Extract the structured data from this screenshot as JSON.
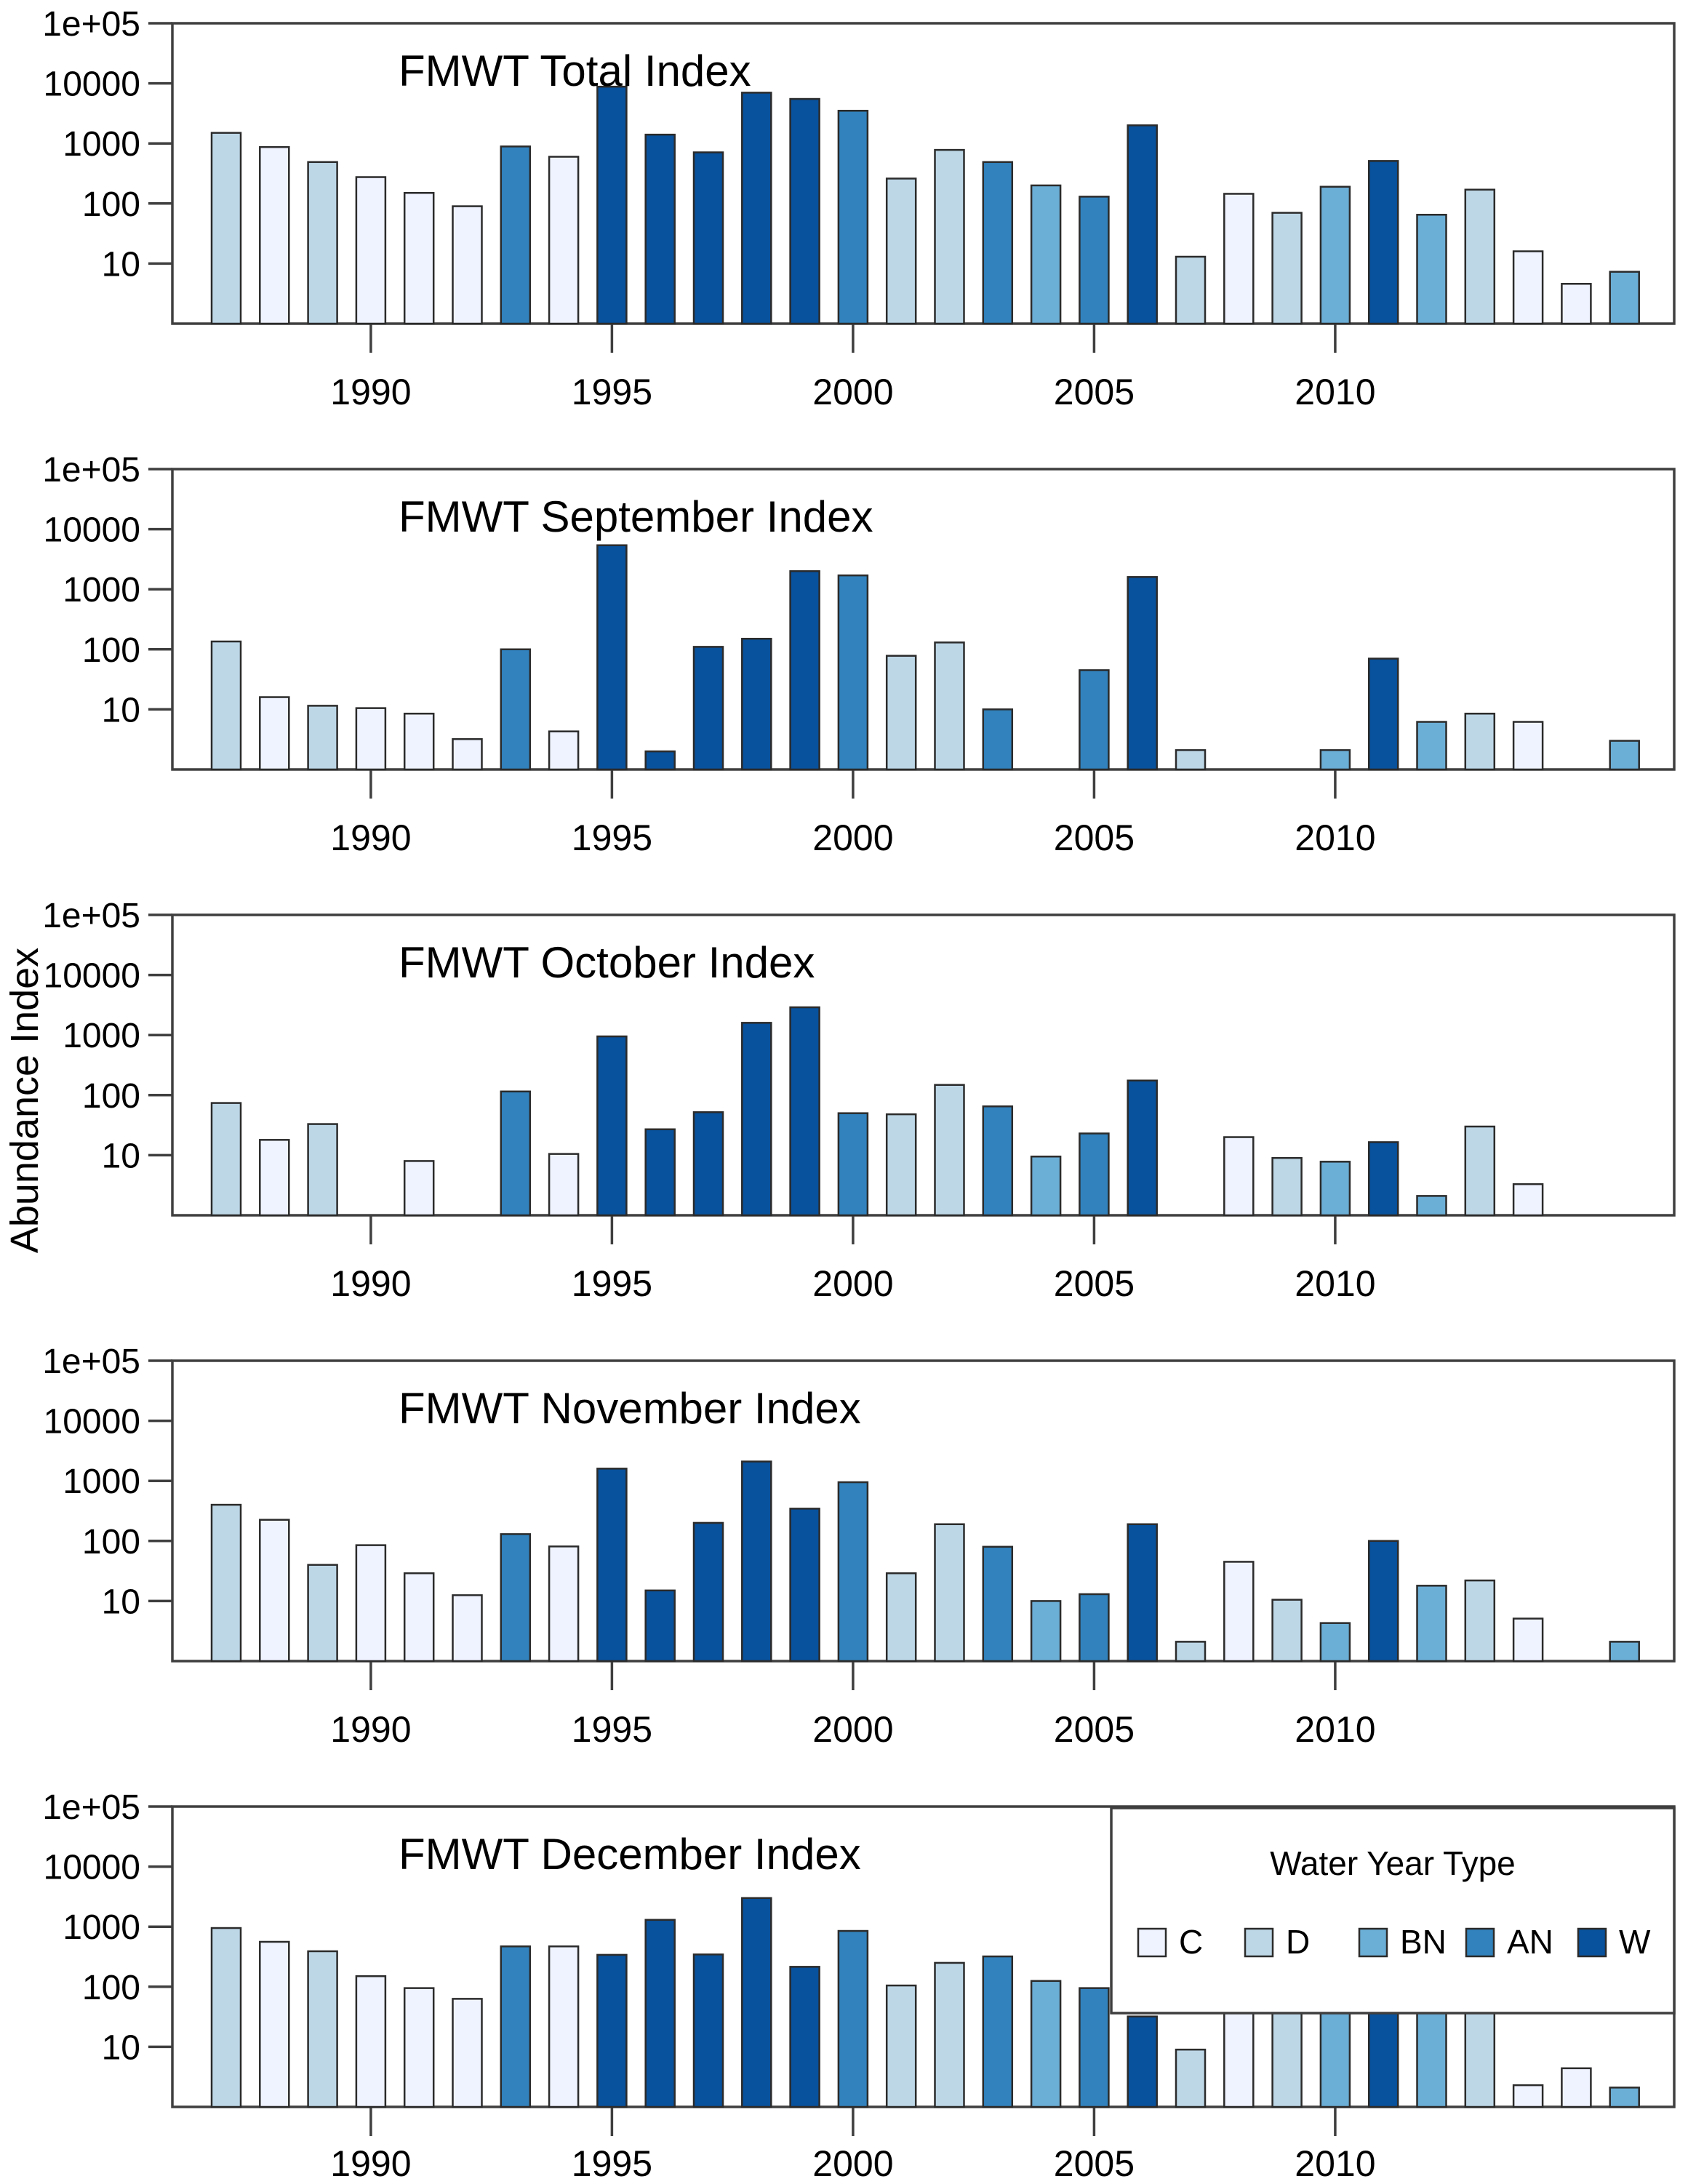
{
  "figure": {
    "ylabel": "Abundance Index",
    "y_tick_labels": [
      "10",
      "100",
      "1000",
      "10000",
      "1e+05"
    ],
    "x_tick_years": [
      1990,
      1995,
      2000,
      2005,
      2010
    ],
    "years": [
      1987,
      1988,
      1989,
      1990,
      1991,
      1992,
      1993,
      1994,
      1995,
      1996,
      1997,
      1998,
      1999,
      2000,
      2001,
      2002,
      2003,
      2004,
      2005,
      2006,
      2007,
      2008,
      2009,
      2010,
      2011,
      2012,
      2013,
      2014,
      2015,
      2016
    ],
    "water_year_types": [
      "D",
      "C",
      "D",
      "C",
      "C",
      "C",
      "AN",
      "C",
      "W",
      "W",
      "W",
      "W",
      "W",
      "AN",
      "D",
      "D",
      "AN",
      "BN",
      "AN",
      "W",
      "D",
      "C",
      "D",
      "BN",
      "W",
      "BN",
      "D",
      "C",
      "C",
      "BN"
    ]
  },
  "palette": {
    "C": "#EFF3FF",
    "D": "#BDD7E7",
    "BN": "#6BAED6",
    "AN": "#3182BD",
    "W": "#08519C"
  },
  "axis_color": "#3f3f3f",
  "bar_stroke_color": "#2b2b2b",
  "legend": {
    "title": "Water Year Type",
    "entries": [
      {
        "label": "C",
        "color": "#EFF3FF"
      },
      {
        "label": "D",
        "color": "#BDD7E7"
      },
      {
        "label": "BN",
        "color": "#6BAED6"
      },
      {
        "label": "AN",
        "color": "#3182BD"
      },
      {
        "label": "W",
        "color": "#08519C"
      }
    ]
  },
  "chart_data": [
    {
      "type": "bar",
      "title": "FMWT Total Index",
      "yscale": "log",
      "ylim": [
        1,
        100000
      ],
      "grid": false,
      "color_by": "water_year_type",
      "values": [
        1500,
        870,
        490,
        275,
        150,
        90,
        890,
        600,
        8800,
        1400,
        710,
        7000,
        5500,
        3500,
        260,
        780,
        490,
        200,
        130,
        2000,
        13,
        145,
        70,
        190,
        510,
        65,
        170,
        16,
        4.6,
        7.3
      ]
    },
    {
      "type": "bar",
      "title": "FMWT September Index",
      "yscale": "log",
      "ylim": [
        1,
        100000
      ],
      "grid": false,
      "color_by": "water_year_type",
      "values": [
        135,
        16,
        11.5,
        10.5,
        8.5,
        3.2,
        100,
        4.3,
        5400,
        2,
        110,
        150,
        2000,
        1700,
        78,
        130,
        10,
        null,
        45,
        1600,
        2.1,
        null,
        null,
        2.1,
        70,
        6.2,
        8.5,
        6.2,
        null,
        3
      ]
    },
    {
      "type": "bar",
      "title": "FMWT October Index",
      "yscale": "log",
      "ylim": [
        1,
        100000
      ],
      "grid": false,
      "color_by": "water_year_type",
      "values": [
        74,
        18,
        33,
        null,
        8,
        null,
        115,
        10.5,
        950,
        27,
        52,
        1600,
        2900,
        50,
        48,
        148,
        65,
        9.5,
        23,
        175,
        null,
        20,
        9,
        7.8,
        16.5,
        2.1,
        30,
        3.3,
        null,
        null
      ]
    },
    {
      "type": "bar",
      "title": "FMWT November Index",
      "yscale": "log",
      "ylim": [
        1,
        100000
      ],
      "grid": false,
      "color_by": "water_year_type",
      "values": [
        400,
        225,
        40,
        85,
        29,
        12.5,
        130,
        81,
        1600,
        15,
        200,
        2100,
        345,
        950,
        29,
        190,
        80,
        10,
        13,
        190,
        2.1,
        45,
        10.5,
        4.3,
        100,
        18,
        22,
        5.1,
        null,
        2.1
      ]
    },
    {
      "type": "bar",
      "title": "FMWT December Index",
      "yscale": "log",
      "ylim": [
        1,
        100000
      ],
      "grid": false,
      "color_by": "water_year_type",
      "legend_in_panel": true,
      "values": [
        950,
        560,
        390,
        150,
        95,
        63,
        470,
        470,
        340,
        1300,
        345,
        3000,
        215,
        850,
        105,
        250,
        320,
        125,
        95,
        32,
        9,
        78,
        48,
        180,
        300,
        37,
        108,
        2.3,
        4.4,
        2.1
      ]
    }
  ]
}
